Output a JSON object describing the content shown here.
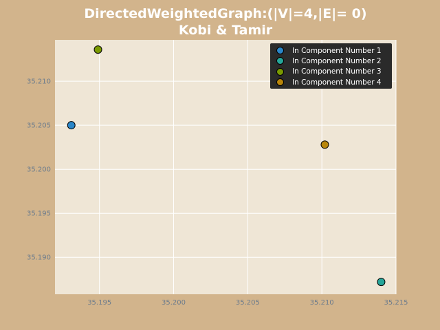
{
  "title": {
    "line1": "DirectedWeightedGraph:(|V|=4,|E|= 0)",
    "line2": "Kobi & Tamir"
  },
  "colors": {
    "figure_background": "#d2b48c",
    "plot_background": "#efe6d6",
    "grid": "#ffffff",
    "tick_label": "#6b7b8c",
    "legend_background": "#2a2a2a"
  },
  "chart_data": {
    "type": "scatter",
    "title": "DirectedWeightedGraph:(|V|=4,|E|= 0)\nKobi & Tamir",
    "xlabel": "",
    "ylabel": "",
    "xlim": [
      35.192,
      35.215
    ],
    "ylim": [
      35.1858,
      35.2147
    ],
    "xticks": [
      "35.195",
      "35.200",
      "35.205",
      "35.210",
      "35.215"
    ],
    "xtick_values": [
      35.195,
      35.2,
      35.205,
      35.21,
      35.215
    ],
    "yticks": [
      "35.190",
      "35.195",
      "35.200",
      "35.205",
      "35.210"
    ],
    "ytick_values": [
      35.19,
      35.195,
      35.2,
      35.205,
      35.21
    ],
    "grid": true,
    "legend_position": "top-right",
    "series": [
      {
        "name": "In Component Number 1",
        "color": "#2a86c8",
        "x": [
          35.1931
        ],
        "y": [
          35.205
        ]
      },
      {
        "name": "In Component Number 2",
        "color": "#26a69a",
        "x": [
          35.214
        ],
        "y": [
          35.1872
        ]
      },
      {
        "name": "In Component Number 3",
        "color": "#7a9a01",
        "x": [
          35.1949
        ],
        "y": [
          35.2136
        ]
      },
      {
        "name": "In Component Number 4",
        "color": "#b8860b",
        "x": [
          35.2102
        ],
        "y": [
          35.2028
        ]
      }
    ]
  }
}
